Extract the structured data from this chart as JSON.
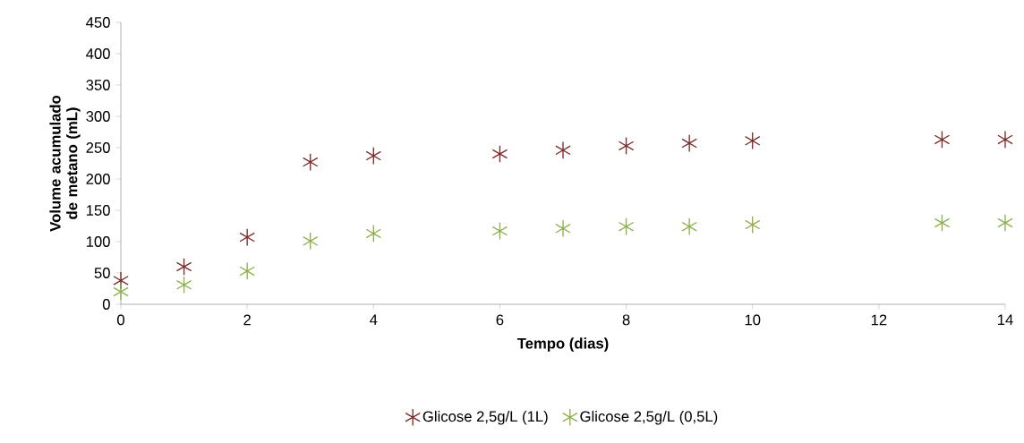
{
  "chart_data": {
    "type": "scatter",
    "xlabel": "Tempo (dias)",
    "ylabel": "Volume acumulado de metano (mL)",
    "x": [
      0,
      1,
      2,
      3,
      4,
      6,
      7,
      8,
      9,
      10,
      13,
      14
    ],
    "series": [
      {
        "name": "Glicose 2,5g/L (1L)",
        "color": "#7b2a2a",
        "values": [
          38,
          60,
          107,
          227,
          237,
          240,
          246,
          253,
          257,
          261,
          263,
          263
        ]
      },
      {
        "name": "Glicose 2,5g/L (0,5L)",
        "color": "#8db04b",
        "values": [
          20,
          31,
          53,
          101,
          113,
          117,
          121,
          124,
          124,
          127,
          130,
          130
        ]
      }
    ],
    "xlim": [
      0,
      14
    ],
    "xticks": [
      0,
      2,
      4,
      6,
      8,
      10,
      12,
      14
    ],
    "ylim": [
      0,
      450
    ],
    "yticks": [
      0,
      50,
      100,
      150,
      200,
      250,
      300,
      350,
      400,
      450
    ],
    "grid": false,
    "legend": "bottom",
    "marker": "cross"
  }
}
